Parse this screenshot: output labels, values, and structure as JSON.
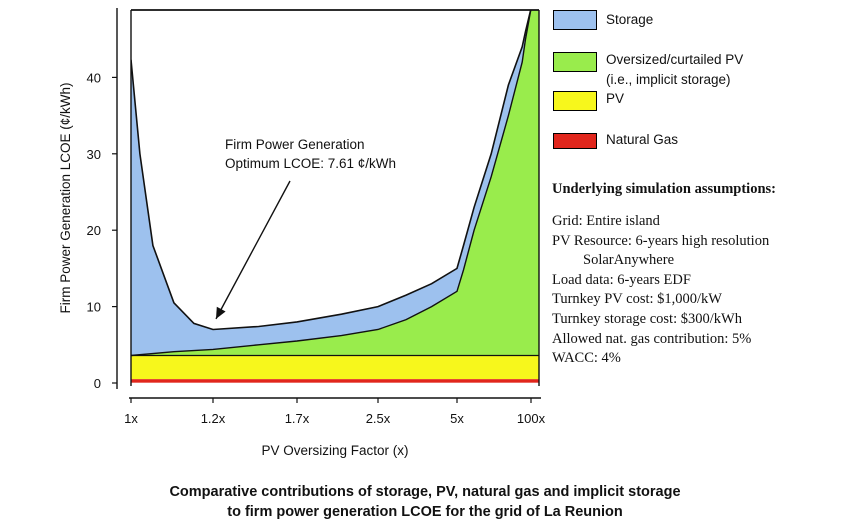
{
  "chart_data": {
    "type": "area",
    "title": "Comparative contributions of storage, PV, natural gas and implicit storage to firm power generation LCOE for the grid of La Reunion",
    "xlabel": "PV Oversizing Factor (x)",
    "ylabel": "Firm Power Generation LCOE (¢/kWh)",
    "x_ticks": [
      "1x",
      "1.2x",
      "1.7x",
      "2.5x",
      "5x",
      "100x"
    ],
    "y_ticks": [
      0,
      10,
      20,
      30,
      40
    ],
    "ylim": [
      -0.5,
      49
    ],
    "x_scale": "log (oversizing factor)",
    "series": [
      {
        "name": "Natural Gas",
        "color": "#e1261c",
        "x": [
          1,
          100
        ],
        "y": [
          0.5,
          0.5
        ]
      },
      {
        "name": "PV",
        "color": "#f7f71c",
        "x": [
          1,
          100
        ],
        "y": [
          3.6,
          3.6
        ]
      },
      {
        "name": "Oversized/curtailed PV (i.e., implicit storage)",
        "color": "#99ec4c",
        "x": [
          1,
          1.1,
          1.2,
          1.45,
          1.7,
          2.1,
          2.5,
          3.2,
          4.0,
          5,
          6.5,
          10,
          20,
          40,
          70,
          80,
          100
        ],
        "y": [
          3.6,
          4.1,
          4.4,
          5.0,
          5.5,
          6.2,
          7.0,
          8.3,
          10.0,
          12.0,
          14.8,
          20.0,
          27.0,
          35.0,
          42.0,
          45.0,
          49.0
        ]
      },
      {
        "name": "Storage",
        "color": "#9dc1ee",
        "x": [
          1,
          1.02,
          1.05,
          1.1,
          1.15,
          1.2,
          1.45,
          1.7,
          2.1,
          2.5,
          3.2,
          4.0,
          5,
          6.5,
          10,
          20,
          40,
          70,
          80,
          100
        ],
        "y": [
          42.3,
          30.0,
          18.0,
          10.5,
          7.8,
          7.0,
          7.4,
          8.0,
          9.0,
          10.0,
          11.5,
          13.0,
          15.0,
          18.0,
          23.0,
          30.0,
          39.0,
          44.0,
          46.0,
          49.0
        ]
      }
    ],
    "annotation": {
      "lines": [
        "Firm Power Generation",
        "Optimum LCOE:  7.61 ¢/kWh"
      ],
      "points_to": {
        "x": 1.2,
        "y": 7.61
      }
    },
    "legend": {
      "placement": "right",
      "entries": [
        {
          "label": "Storage",
          "color": "#9dc1ee"
        },
        {
          "label": "Oversized/curtailed PV",
          "label2": "(i.e., implicit storage)",
          "color": "#99ec4c"
        },
        {
          "label": "PV",
          "color": "#f7f71c"
        },
        {
          "label": "Natural Gas",
          "color": "#e1261c"
        }
      ]
    }
  },
  "assumptions": {
    "heading": "Underlying simulation assumptions:",
    "items": [
      "Grid: Entire island",
      "PV Resource: 6-years high resolution",
      "SolarAnywhere",
      "Load data: 6-years EDF",
      "Turnkey PV cost: $1,000/kW",
      "Turnkey storage cost: $300/kWh",
      "Allowed nat. gas contribution: 5%",
      "WACC: 4%"
    ]
  },
  "caption": {
    "line1": "Comparative contributions of storage, PV, natural gas and implicit storage",
    "line2": "to firm power generation LCOE for the grid of La Reunion"
  }
}
